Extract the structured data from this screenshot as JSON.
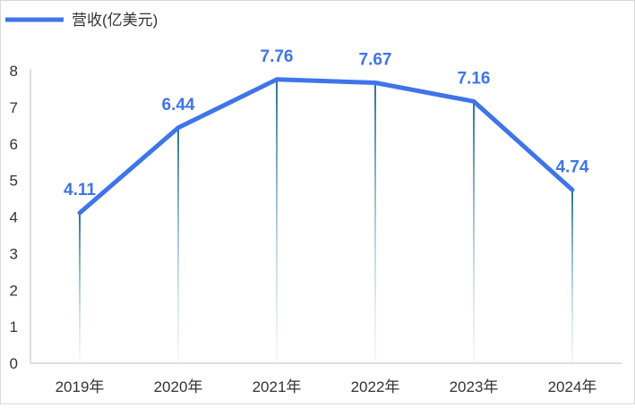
{
  "chart_data": {
    "type": "line",
    "categories": [
      "2019年",
      "2020年",
      "2021年",
      "2022年",
      "2023年",
      "2024年"
    ],
    "series": [
      {
        "name": "营收(亿美元)",
        "values": [
          4.11,
          6.44,
          7.76,
          7.67,
          7.16,
          4.74
        ]
      }
    ],
    "ylim": [
      0,
      8
    ],
    "yticks": [
      "0",
      "1",
      "2",
      "3",
      "4",
      "5",
      "6",
      "7",
      "8"
    ],
    "data_labels": [
      "4.11",
      "6.44",
      "7.76",
      "7.67",
      "7.16",
      "4.74"
    ],
    "legend_position": "top-left",
    "grid": false,
    "drop_lines": true
  },
  "colors": {
    "line": "#3f74ea",
    "label": "#3f74ea",
    "axis": "#bfbfbf",
    "text": "#333333"
  }
}
